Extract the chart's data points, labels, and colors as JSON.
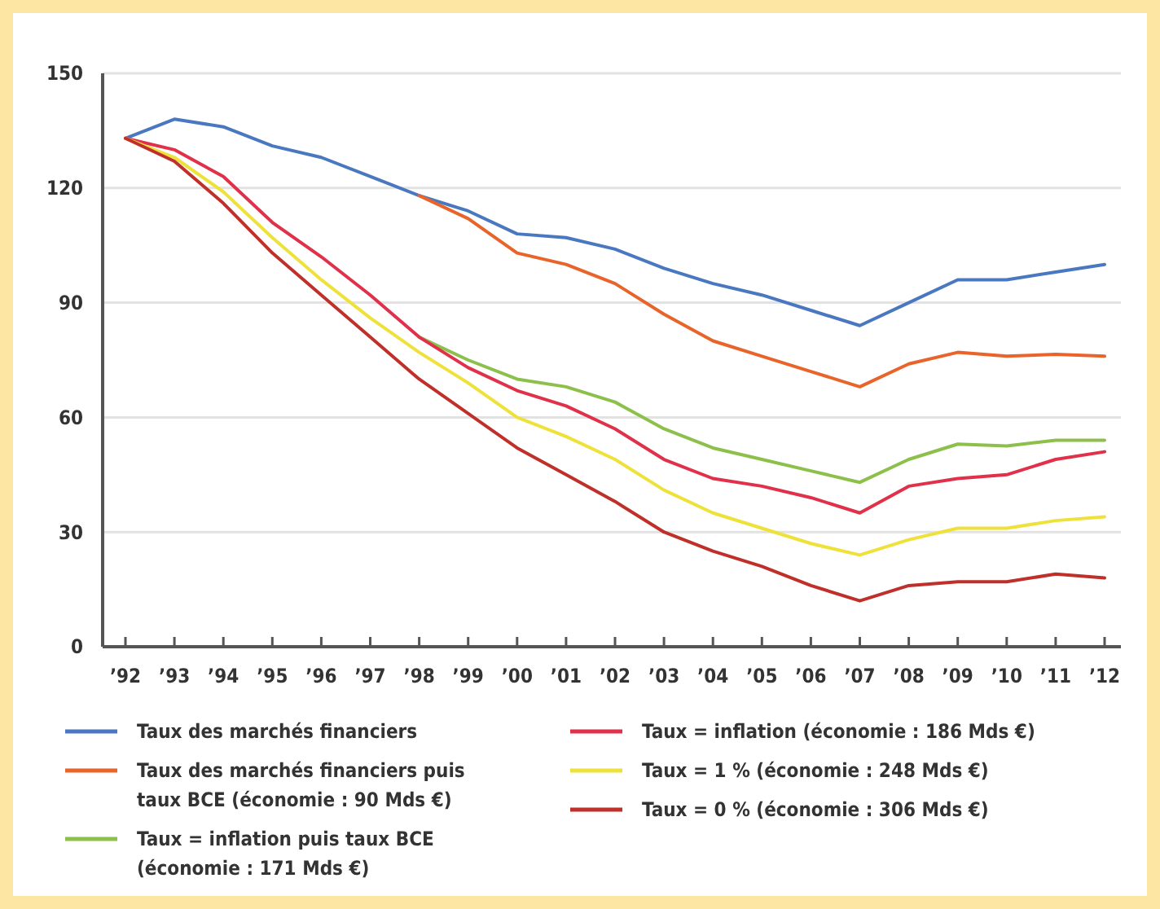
{
  "chart_data": {
    "type": "line",
    "categories": [
      "’92",
      "’93",
      "’94",
      "’95",
      "’96",
      "’97",
      "’98",
      "’99",
      "’00",
      "’01",
      "’02",
      "’03",
      "’04",
      "’05",
      "’06",
      "’07",
      "’08",
      "’09",
      "’10",
      "’11",
      "’12"
    ],
    "ylim": [
      0,
      150
    ],
    "yticks": [
      0,
      30,
      60,
      90,
      120,
      150
    ],
    "grid": "y",
    "legend": "bottom",
    "marker": "none",
    "line_style": "solid",
    "series": [
      {
        "name": "Taux des marchés financiers",
        "color": "#4a78c0",
        "values": [
          133,
          138,
          136,
          131,
          128,
          123,
          118,
          114,
          108,
          107,
          104,
          99,
          95,
          92,
          88,
          84,
          90,
          96,
          96,
          98,
          100
        ]
      },
      {
        "name": "Taux des marchés financiers puis taux BCE (économie : 90 Mds €)",
        "color": "#e8642a",
        "values": [
          null,
          null,
          null,
          null,
          null,
          null,
          118,
          112,
          103,
          100,
          95,
          87,
          80,
          76,
          72,
          68,
          74,
          77,
          76,
          76.5,
          76
        ]
      },
      {
        "name": "Taux = inflation puis taux BCE (économie : 171 Mds €)",
        "color": "#8cc04a",
        "values": [
          null,
          null,
          null,
          null,
          null,
          null,
          81,
          75,
          70,
          68,
          64,
          57,
          52,
          49,
          46,
          43,
          49,
          53,
          52.5,
          54,
          54
        ]
      },
      {
        "name": "Taux = inflation (économie : 186 Mds €)",
        "color": "#e0304a",
        "values": [
          133,
          130,
          123,
          111,
          102,
          92,
          81,
          73,
          67,
          63,
          57,
          49,
          44,
          42,
          39,
          35,
          42,
          44,
          45,
          49,
          51
        ]
      },
      {
        "name": "Taux = 1 % (économie : 248 Mds €)",
        "color": "#eee23a",
        "values": [
          133,
          128,
          119,
          107,
          96,
          86,
          77,
          69,
          60,
          55,
          49,
          41,
          35,
          31,
          27,
          24,
          28,
          31,
          31,
          33,
          34
        ]
      },
      {
        "name": "Taux = 0 % (économie : 306 Mds €)",
        "color": "#c0302a",
        "values": [
          133,
          127,
          116,
          103,
          92,
          81,
          70,
          61,
          52,
          45,
          38,
          30,
          25,
          21,
          16,
          12,
          16,
          17,
          17,
          19,
          18
        ]
      }
    ]
  }
}
